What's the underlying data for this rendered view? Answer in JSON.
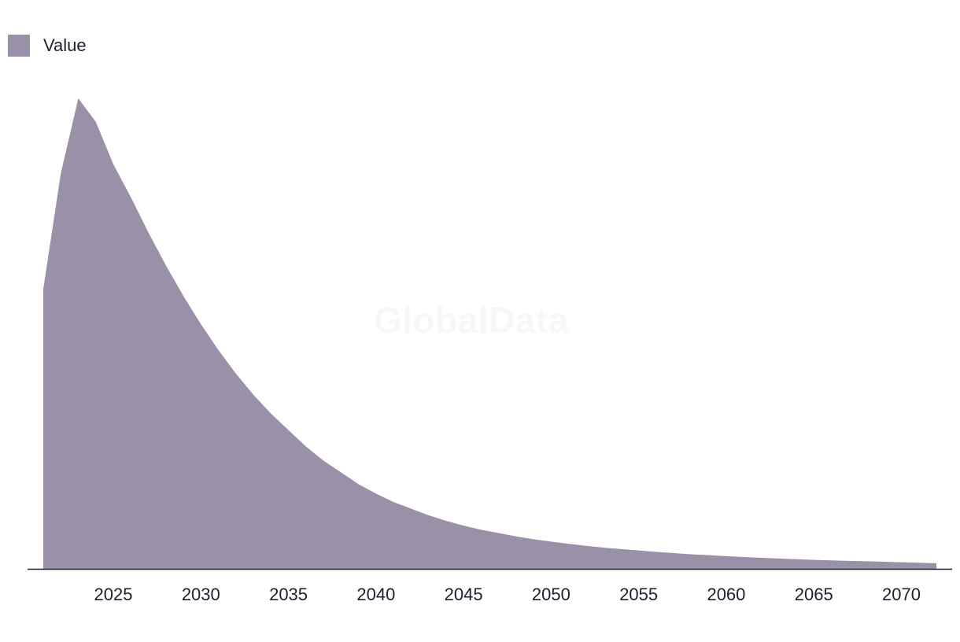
{
  "chart_data": {
    "type": "area",
    "title": "",
    "xlabel": "",
    "ylabel": "",
    "legend": {
      "position": "top-left",
      "entries": [
        "Value"
      ]
    },
    "grid": false,
    "xlim": [
      2021,
      2072
    ],
    "ylim": [
      0,
      100
    ],
    "x_ticks": [
      2025,
      2030,
      2035,
      2040,
      2045,
      2050,
      2055,
      2060,
      2065,
      2070
    ],
    "series": [
      {
        "name": "Value",
        "color": "#9a91a9",
        "x": [
          2021,
          2022,
          2023,
          2024,
          2025,
          2026,
          2027,
          2028,
          2029,
          2030,
          2031,
          2032,
          2033,
          2034,
          2035,
          2036,
          2037,
          2038,
          2039,
          2040,
          2041,
          2042,
          2043,
          2044,
          2045,
          2046,
          2047,
          2048,
          2049,
          2050,
          2051,
          2052,
          2053,
          2054,
          2055,
          2056,
          2057,
          2058,
          2059,
          2060,
          2061,
          2062,
          2063,
          2064,
          2065,
          2066,
          2067,
          2068,
          2069,
          2070,
          2071,
          2072
        ],
        "values": [
          59.5,
          84,
          100,
          95,
          86,
          79,
          71.5,
          64.5,
          58,
          52,
          46.5,
          41.5,
          37,
          33,
          29.5,
          26,
          23,
          20.5,
          18,
          16,
          14.2,
          12.8,
          11.4,
          10.2,
          9.2,
          8.3,
          7.6,
          6.9,
          6.3,
          5.8,
          5.3,
          4.9,
          4.5,
          4.2,
          3.9,
          3.6,
          3.35,
          3.1,
          2.9,
          2.7,
          2.5,
          2.35,
          2.2,
          2.05,
          1.9,
          1.8,
          1.7,
          1.6,
          1.5,
          1.4,
          1.3,
          1.2
        ]
      }
    ]
  },
  "watermark": "GlobalData"
}
